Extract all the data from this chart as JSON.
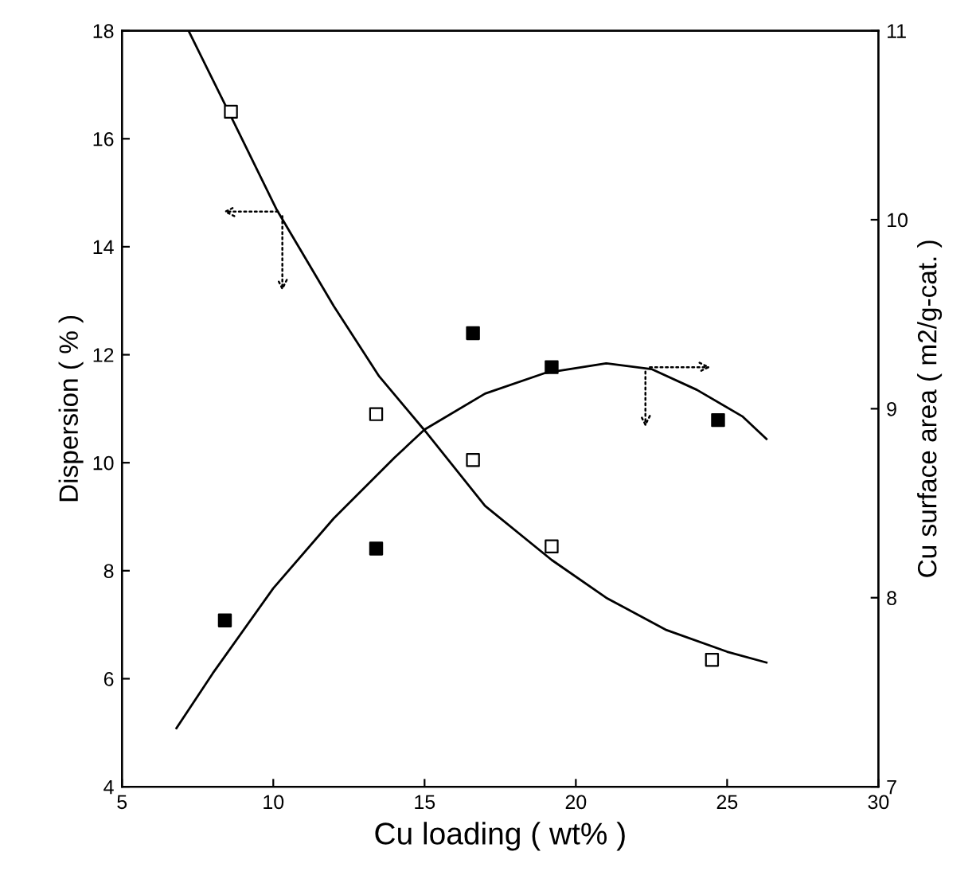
{
  "chart_data": {
    "type": "scatter",
    "xlabel": "Cu loading ( wt% )",
    "ylabel": "Dispersion ( % )",
    "y2label": "Cu surface area ( m2/g-cat. )",
    "xlim": [
      5,
      30
    ],
    "xticks": [
      5,
      10,
      15,
      20,
      25,
      30
    ],
    "ylim": [
      4,
      18
    ],
    "yticks": [
      4,
      6,
      8,
      10,
      12,
      14,
      16,
      18
    ],
    "y2lim": [
      7,
      11
    ],
    "y2ticks": [
      7,
      8,
      9,
      10,
      11
    ],
    "grid": false,
    "marker": "square",
    "series": [
      {
        "color": "#ffffff",
        "x": [
          8.6,
          13.4,
          16.6,
          19.2,
          24.5
        ],
        "values": [
          16.5,
          10.9,
          10.05,
          8.45,
          6.35
        ]
      },
      {
        "axis": "y2",
        "color": "#000000",
        "x": [
          8.4,
          13.4,
          16.6,
          19.2,
          24.7
        ],
        "values": [
          7.88,
          8.26,
          9.4,
          9.22,
          8.94
        ]
      },
      {
        "type": "line",
        "marker": "none",
        "color": "#000000",
        "x": [
          7.2,
          8.7,
          10.1,
          12,
          13.5,
          15,
          17,
          19.2,
          21,
          23,
          25,
          26.3
        ],
        "values": [
          18,
          16.3,
          14.7,
          12.9,
          11.6,
          10.6,
          9.2,
          8.2,
          7.5,
          6.9,
          6.5,
          6.3
        ]
      },
      {
        "type": "line",
        "axis": "y2",
        "marker": "none",
        "color": "#000000",
        "x": [
          6.8,
          8,
          10,
          12,
          14,
          15,
          17,
          19,
          21,
          22.5,
          24,
          25.5,
          26.3
        ],
        "values": [
          7.31,
          7.6,
          8.05,
          8.42,
          8.74,
          8.89,
          9.08,
          9.19,
          9.24,
          9.21,
          9.1,
          8.96,
          8.84
        ]
      }
    ]
  }
}
